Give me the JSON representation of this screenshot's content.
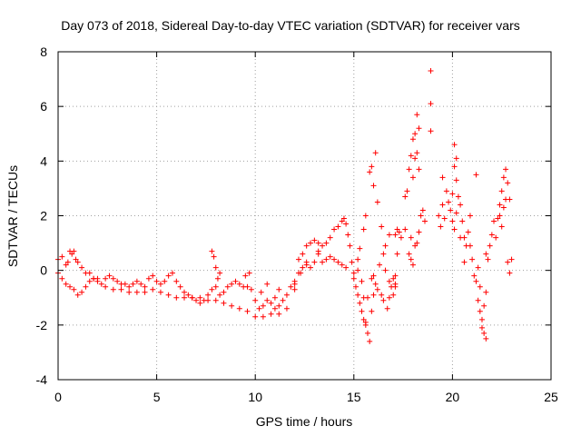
{
  "chart_data": {
    "type": "scatter",
    "title": "Day 073 of 2018, Sidereal Day-to-day VTEC variation (SDTVAR) for receiver vars",
    "xlabel": "GPS time / hours",
    "ylabel": "SDTVAR / TECUs",
    "xlim": [
      0,
      25
    ],
    "ylim": [
      -4,
      8
    ],
    "xticks": [
      0,
      5,
      10,
      15,
      20,
      25
    ],
    "yticks": [
      -4,
      -2,
      0,
      2,
      4,
      6,
      8
    ],
    "grid": true,
    "marker": "+",
    "color": "#ff0000",
    "series": [
      {
        "name": "SDTVAR",
        "points": [
          [
            0.0,
            0.4
          ],
          [
            0.2,
            0.5
          ],
          [
            0.4,
            0.2
          ],
          [
            0.5,
            0.3
          ],
          [
            0.6,
            0.7
          ],
          [
            0.7,
            0.6
          ],
          [
            0.8,
            0.7
          ],
          [
            0.9,
            0.4
          ],
          [
            1.0,
            0.3
          ],
          [
            1.2,
            0.1
          ],
          [
            1.4,
            -0.1
          ],
          [
            1.6,
            -0.1
          ],
          [
            1.8,
            -0.3
          ],
          [
            2.0,
            -0.3
          ],
          [
            2.2,
            -0.5
          ],
          [
            2.4,
            -0.3
          ],
          [
            2.6,
            -0.2
          ],
          [
            2.8,
            -0.3
          ],
          [
            3.0,
            -0.4
          ],
          [
            3.2,
            -0.5
          ],
          [
            3.4,
            -0.5
          ],
          [
            3.6,
            -0.6
          ],
          [
            3.8,
            -0.5
          ],
          [
            4.0,
            -0.4
          ],
          [
            4.2,
            -0.5
          ],
          [
            4.4,
            -0.6
          ],
          [
            4.6,
            -0.3
          ],
          [
            4.8,
            -0.2
          ],
          [
            5.0,
            -0.4
          ],
          [
            5.2,
            -0.5
          ],
          [
            5.4,
            -0.4
          ],
          [
            5.6,
            -0.2
          ],
          [
            5.8,
            -0.1
          ],
          [
            6.0,
            -0.4
          ],
          [
            6.2,
            -0.6
          ],
          [
            6.4,
            -0.8
          ],
          [
            6.6,
            -0.9
          ],
          [
            6.8,
            -1.0
          ],
          [
            7.0,
            -1.1
          ],
          [
            7.2,
            -1.2
          ],
          [
            7.4,
            -1.1
          ],
          [
            7.6,
            -0.9
          ],
          [
            7.8,
            -0.7
          ],
          [
            8.0,
            -0.6
          ],
          [
            8.2,
            -0.9
          ],
          [
            8.4,
            -0.8
          ],
          [
            8.6,
            -0.6
          ],
          [
            8.8,
            -0.5
          ],
          [
            9.0,
            -0.4
          ],
          [
            9.2,
            -0.5
          ],
          [
            9.4,
            -0.6
          ],
          [
            9.6,
            -0.6
          ],
          [
            9.8,
            -0.7
          ],
          [
            10.0,
            -1.1
          ],
          [
            10.2,
            -1.4
          ],
          [
            10.4,
            -1.3
          ],
          [
            10.6,
            -1.1
          ],
          [
            10.8,
            -1.2
          ],
          [
            11.0,
            -1.4
          ],
          [
            11.2,
            -1.3
          ],
          [
            11.4,
            -1.1
          ],
          [
            11.6,
            -0.9
          ],
          [
            11.8,
            -0.6
          ],
          [
            12.0,
            -0.4
          ],
          [
            12.2,
            -0.1
          ],
          [
            12.4,
            0.1
          ],
          [
            0.0,
            -0.1
          ],
          [
            0.2,
            -0.3
          ],
          [
            0.4,
            -0.5
          ],
          [
            0.6,
            -0.6
          ],
          [
            0.8,
            -0.7
          ],
          [
            1.0,
            -0.9
          ],
          [
            1.2,
            -0.8
          ],
          [
            1.4,
            -0.6
          ],
          [
            1.6,
            -0.4
          ],
          [
            1.8,
            -0.3
          ],
          [
            2.0,
            -0.4
          ],
          [
            2.4,
            -0.6
          ],
          [
            2.8,
            -0.7
          ],
          [
            3.2,
            -0.7
          ],
          [
            3.6,
            -0.8
          ],
          [
            4.0,
            -0.8
          ],
          [
            4.4,
            -0.8
          ],
          [
            4.8,
            -0.7
          ],
          [
            5.2,
            -0.8
          ],
          [
            5.6,
            -0.9
          ],
          [
            6.0,
            -1.0
          ],
          [
            6.4,
            -1.0
          ],
          [
            6.8,
            -1.0
          ],
          [
            7.2,
            -1.0
          ],
          [
            7.6,
            -1.1
          ],
          [
            8.0,
            -1.1
          ],
          [
            8.4,
            -1.2
          ],
          [
            8.8,
            -1.3
          ],
          [
            9.2,
            -1.4
          ],
          [
            9.6,
            -1.5
          ],
          [
            10.0,
            -1.7
          ],
          [
            10.4,
            -1.7
          ],
          [
            10.8,
            -1.6
          ],
          [
            11.2,
            -1.6
          ],
          [
            11.6,
            -1.4
          ],
          [
            12.0,
            -0.7
          ],
          [
            7.8,
            0.7
          ],
          [
            7.9,
            0.5
          ],
          [
            8.0,
            0.1
          ],
          [
            8.1,
            -0.3
          ],
          [
            8.2,
            -0.1
          ],
          [
            9.5,
            -0.2
          ],
          [
            9.7,
            -0.1
          ],
          [
            10.3,
            -0.8
          ],
          [
            10.6,
            -0.5
          ],
          [
            11.0,
            -1.0
          ],
          [
            11.2,
            -0.7
          ],
          [
            12.2,
            0.4
          ],
          [
            12.4,
            0.6
          ],
          [
            12.6,
            0.3
          ],
          [
            12.8,
            0.1
          ],
          [
            13.0,
            0.3
          ],
          [
            13.2,
            0.6
          ],
          [
            13.4,
            0.3
          ],
          [
            13.6,
            0.4
          ],
          [
            13.8,
            0.5
          ],
          [
            14.0,
            0.4
          ],
          [
            14.2,
            0.3
          ],
          [
            14.4,
            0.2
          ],
          [
            14.6,
            0.1
          ],
          [
            12.6,
            0.9
          ],
          [
            12.8,
            1.0
          ],
          [
            13.0,
            1.1
          ],
          [
            13.2,
            1.0
          ],
          [
            13.4,
            0.9
          ],
          [
            13.6,
            1.0
          ],
          [
            13.8,
            1.2
          ],
          [
            14.0,
            1.5
          ],
          [
            14.2,
            1.6
          ],
          [
            14.4,
            1.8
          ],
          [
            14.5,
            1.9
          ],
          [
            14.6,
            1.7
          ],
          [
            14.7,
            1.3
          ],
          [
            14.8,
            0.9
          ],
          [
            14.9,
            0.3
          ],
          [
            15.0,
            -0.3
          ],
          [
            15.1,
            -0.6
          ],
          [
            15.2,
            -0.9
          ],
          [
            15.3,
            -1.2
          ],
          [
            15.4,
            -1.5
          ],
          [
            15.5,
            -1.8
          ],
          [
            15.6,
            -2.0
          ],
          [
            15.7,
            -2.3
          ],
          [
            15.8,
            -2.6
          ],
          [
            15.9,
            -1.5
          ],
          [
            16.0,
            -0.9
          ],
          [
            16.1,
            -0.5
          ],
          [
            16.2,
            -0.7
          ],
          [
            16.4,
            -0.9
          ],
          [
            16.5,
            -1.1
          ],
          [
            16.7,
            -1.4
          ],
          [
            16.8,
            -1.0
          ],
          [
            16.9,
            -0.6
          ],
          [
            17.0,
            -0.3
          ],
          [
            17.1,
            -0.2
          ],
          [
            12.0,
            -0.5
          ],
          [
            12.3,
            -0.1
          ],
          [
            12.6,
            0.2
          ],
          [
            13.2,
            0.7
          ],
          [
            15.0,
            -0.1
          ],
          [
            15.2,
            0.4
          ],
          [
            15.3,
            0.8
          ],
          [
            15.4,
            -0.4
          ],
          [
            15.5,
            -1.0
          ],
          [
            15.6,
            -1.9
          ],
          [
            15.7,
            -1.0
          ],
          [
            15.9,
            -0.3
          ],
          [
            16.0,
            -0.2
          ],
          [
            16.3,
            0.2
          ],
          [
            16.6,
            0.0
          ],
          [
            16.8,
            -0.4
          ],
          [
            17.1,
            -0.5
          ],
          [
            15.2,
            0.0
          ],
          [
            15.5,
            1.5
          ],
          [
            15.6,
            2.0
          ],
          [
            15.8,
            3.6
          ],
          [
            15.9,
            3.8
          ],
          [
            16.0,
            3.1
          ],
          [
            16.1,
            4.3
          ],
          [
            16.2,
            2.5
          ],
          [
            16.4,
            1.6
          ],
          [
            16.5,
            0.6
          ],
          [
            17.1,
            1.3
          ],
          [
            17.2,
            1.5
          ],
          [
            17.3,
            1.4
          ],
          [
            17.4,
            1.2
          ],
          [
            17.6,
            2.7
          ],
          [
            17.7,
            2.9
          ],
          [
            17.8,
            3.7
          ],
          [
            17.9,
            4.2
          ],
          [
            18.0,
            4.8
          ],
          [
            18.1,
            5.0
          ],
          [
            18.2,
            4.3
          ],
          [
            18.3,
            3.7
          ],
          [
            18.0,
            3.4
          ],
          [
            18.1,
            4.1
          ],
          [
            17.8,
            0.6
          ],
          [
            17.9,
            0.4
          ],
          [
            18.0,
            0.2
          ],
          [
            18.1,
            0.9
          ],
          [
            18.2,
            1.0
          ],
          [
            18.3,
            1.4
          ],
          [
            18.4,
            2.0
          ],
          [
            18.5,
            2.2
          ],
          [
            18.6,
            1.8
          ],
          [
            17.6,
            1.5
          ],
          [
            17.9,
            1.2
          ],
          [
            18.2,
            5.7
          ],
          [
            18.3,
            5.2
          ],
          [
            18.9,
            7.3
          ],
          [
            18.9,
            6.1
          ],
          [
            18.9,
            5.1
          ],
          [
            19.3,
            2.0
          ],
          [
            19.4,
            1.6
          ],
          [
            19.5,
            2.4
          ],
          [
            19.6,
            1.9
          ],
          [
            19.5,
            3.4
          ],
          [
            19.7,
            2.9
          ],
          [
            19.8,
            2.5
          ],
          [
            19.9,
            2.2
          ],
          [
            20.0,
            2.8
          ],
          [
            20.1,
            3.8
          ],
          [
            20.2,
            4.1
          ],
          [
            20.1,
            4.6
          ],
          [
            20.2,
            3.3
          ],
          [
            20.3,
            2.7
          ],
          [
            20.4,
            2.4
          ],
          [
            20.5,
            1.8
          ],
          [
            20.6,
            1.2
          ],
          [
            20.7,
            0.9
          ],
          [
            20.4,
            1.2
          ],
          [
            20.0,
            1.8
          ],
          [
            20.1,
            1.5
          ],
          [
            20.2,
            2.1
          ],
          [
            20.6,
            0.3
          ],
          [
            20.8,
            1.4
          ],
          [
            20.9,
            2.0
          ],
          [
            20.9,
            0.9
          ],
          [
            21.0,
            0.4
          ],
          [
            21.1,
            -0.2
          ],
          [
            21.2,
            -0.4
          ],
          [
            21.3,
            -1.1
          ],
          [
            21.4,
            -1.5
          ],
          [
            21.5,
            -1.8
          ],
          [
            21.6,
            -2.3
          ],
          [
            21.7,
            -2.5
          ],
          [
            21.5,
            -2.1
          ],
          [
            21.6,
            -1.3
          ],
          [
            21.7,
            -0.8
          ],
          [
            21.3,
            0.1
          ],
          [
            21.4,
            -0.6
          ],
          [
            21.7,
            0.6
          ],
          [
            21.2,
            3.5
          ],
          [
            21.8,
            0.4
          ],
          [
            21.9,
            0.9
          ],
          [
            22.0,
            1.3
          ],
          [
            22.1,
            1.8
          ],
          [
            22.2,
            1.2
          ],
          [
            22.3,
            1.9
          ],
          [
            22.4,
            2.4
          ],
          [
            22.5,
            2.9
          ],
          [
            22.6,
            3.4
          ],
          [
            22.7,
            3.7
          ],
          [
            22.8,
            3.2
          ],
          [
            22.6,
            2.3
          ],
          [
            22.7,
            2.6
          ],
          [
            22.5,
            1.6
          ],
          [
            22.4,
            2.0
          ],
          [
            22.9,
            2.6
          ],
          [
            22.8,
            0.3
          ],
          [
            22.9,
            -0.1
          ],
          [
            23.0,
            0.4
          ],
          [
            17.0,
            -0.9
          ],
          [
            17.1,
            -0.6
          ],
          [
            17.2,
            0.6
          ],
          [
            16.8,
            1.3
          ],
          [
            16.6,
            0.9
          ]
        ]
      }
    ]
  }
}
